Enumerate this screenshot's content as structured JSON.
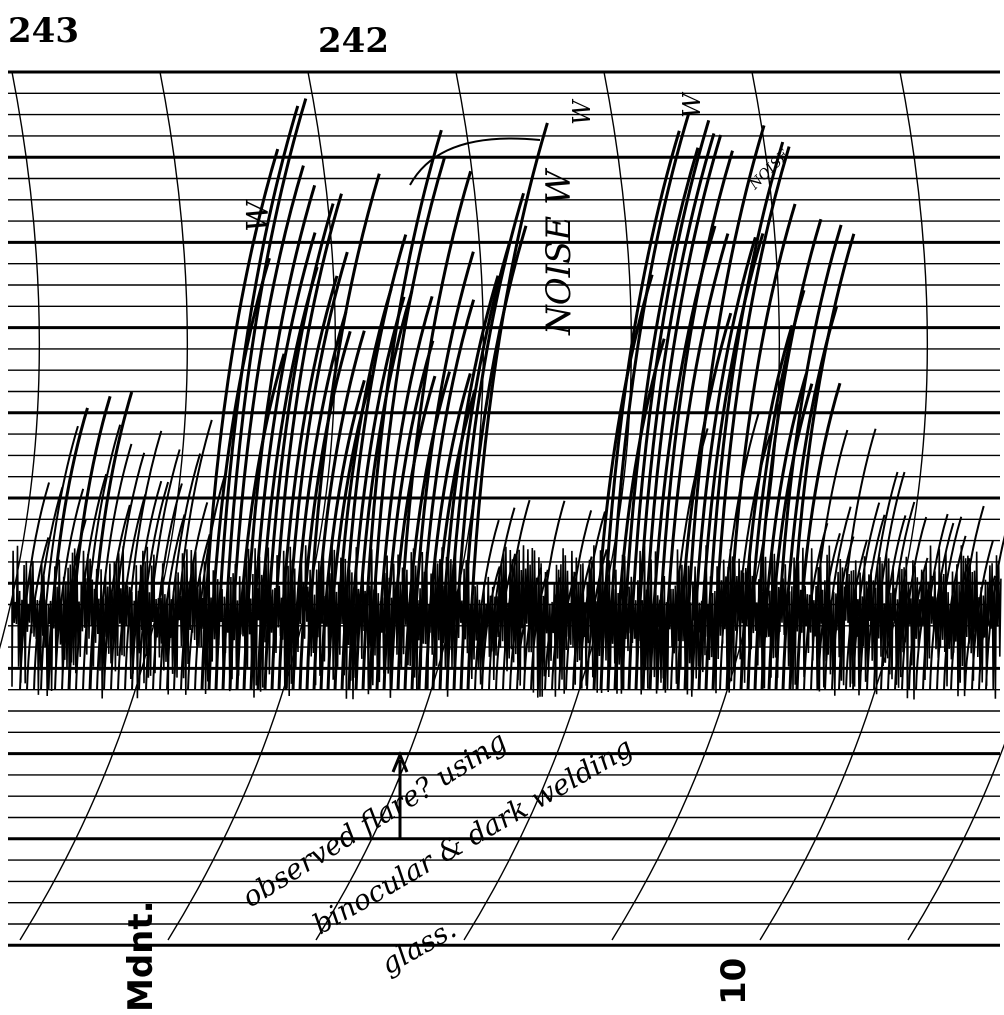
{
  "header": {
    "labels": [
      "243",
      "242"
    ]
  },
  "axis": {
    "labels": [
      "Mdnt.",
      "10"
    ]
  },
  "annotations": {
    "noise_main": "NOISE W",
    "marks": [
      "W",
      "W",
      "W"
    ],
    "noise_small": "NOISE",
    "note": [
      "observed flare? using",
      "binocular & dark welding",
      "glass."
    ]
  }
}
